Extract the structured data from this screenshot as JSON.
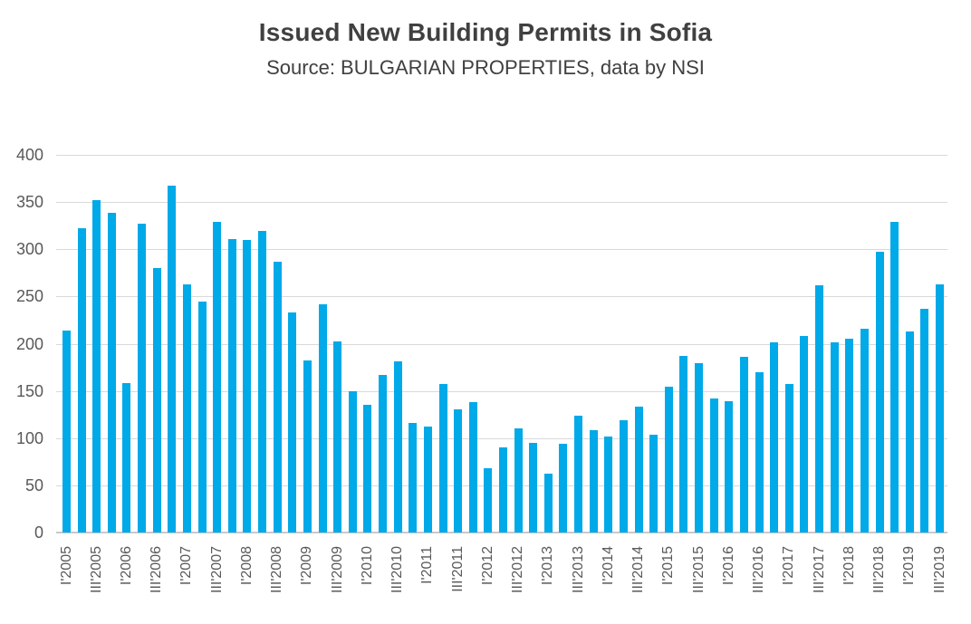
{
  "chart_data": {
    "type": "bar",
    "title": "Issued New Building Permits in Sofia",
    "subtitle": "Source: BULGARIAN PROPERTIES, data by NSI",
    "xlabel": "",
    "ylabel": "",
    "ylim": [
      0,
      400
    ],
    "y_ticks": [
      400,
      350,
      300,
      250,
      200,
      150,
      100,
      50,
      0
    ],
    "grid": "horizontal",
    "legend": "none",
    "bar_color": "#00a9e8",
    "gridline_color": "#d9d9d9",
    "axis_color": "#c9c9c9",
    "tick_text_color": "#595959",
    "title_color": "#404040",
    "x_label_rotation_deg": 90,
    "x_labels_every_n": 2,
    "categories": [
      "I'2005",
      "II'2005",
      "III'2005",
      "IV'2005",
      "I'2006",
      "II'2006",
      "III'2006",
      "IV'2006",
      "I'2007",
      "II'2007",
      "III'2007",
      "IV'2007",
      "I'2008",
      "II'2008",
      "III'2008",
      "IV'2008",
      "I'2009",
      "II'2009",
      "III'2009",
      "IV'2009",
      "I'2010",
      "II'2010",
      "III'2010",
      "IV'2010",
      "I'2011",
      "II'2011",
      "III'2011",
      "IV'2011",
      "I'2012",
      "II'2012",
      "III'2012",
      "IV'2012",
      "I'2013",
      "II'2013",
      "III'2013",
      "IV'2013",
      "I'2014",
      "II'2014",
      "III'2014",
      "IV'2014",
      "I'2015",
      "II'2015",
      "III'2015",
      "IV'2015",
      "I'2016",
      "II'2016",
      "III'2016",
      "IV'2016",
      "I'2017",
      "II'2017",
      "III'2017",
      "IV'2017",
      "I'2018",
      "II'2018",
      "III'2018",
      "IV'2018",
      "I'2019",
      "II'2019",
      "III'2019"
    ],
    "values": [
      214,
      322,
      352,
      339,
      158,
      327,
      280,
      367,
      263,
      245,
      329,
      311,
      310,
      319,
      287,
      233,
      182,
      242,
      202,
      150,
      135,
      167,
      181,
      116,
      112,
      157,
      130,
      138,
      68,
      90,
      110,
      95,
      62,
      94,
      124,
      108,
      102,
      119,
      133,
      104,
      154,
      187,
      179,
      142,
      139,
      186,
      170,
      201,
      157,
      208,
      262,
      201,
      205,
      216,
      297,
      329,
      213,
      237,
      263
    ]
  }
}
